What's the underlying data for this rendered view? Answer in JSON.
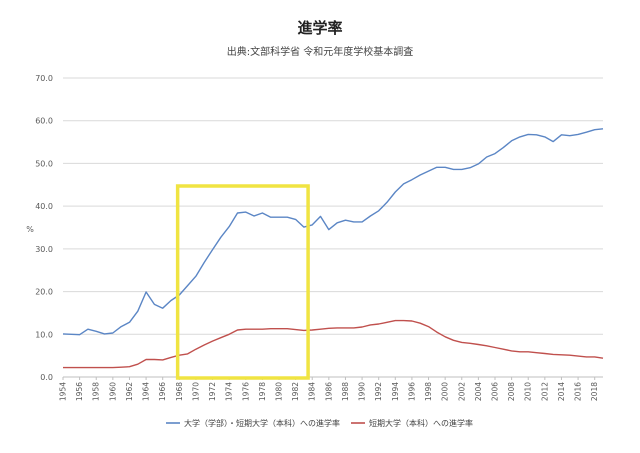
{
  "chart_data": {
    "type": "line",
    "title": "進学率",
    "subtitle": "出典:文部科学省 令和元年度学校基本調査",
    "ylabel": "%",
    "xlabel": "",
    "ylim": [
      0,
      70
    ],
    "yticks": [
      "0.0",
      "10.0",
      "20.0",
      "30.0",
      "40.0",
      "50.0",
      "60.0",
      "70.0"
    ],
    "x_tick_labels": [
      "1954",
      "1956",
      "1958",
      "1960",
      "1962",
      "1964",
      "1966",
      "1968",
      "1970",
      "1972",
      "1974",
      "1976",
      "1978",
      "1980",
      "1982",
      "1984",
      "1986",
      "1988",
      "1990",
      "1992",
      "1994",
      "1996",
      "1998",
      "2000",
      "2002",
      "2004",
      "2006",
      "2008",
      "2010",
      "2012",
      "2014",
      "2016",
      "2018"
    ],
    "grid": "horizontal",
    "legend_position": "bottom",
    "x": [
      1954,
      1955,
      1956,
      1957,
      1958,
      1959,
      1960,
      1961,
      1962,
      1963,
      1964,
      1965,
      1966,
      1967,
      1968,
      1969,
      1970,
      1971,
      1972,
      1973,
      1974,
      1975,
      1976,
      1977,
      1978,
      1979,
      1980,
      1981,
      1982,
      1983,
      1984,
      1985,
      1986,
      1987,
      1988,
      1989,
      1990,
      1991,
      1992,
      1993,
      1994,
      1995,
      1996,
      1997,
      1998,
      1999,
      2000,
      2001,
      2002,
      2003,
      2004,
      2005,
      2006,
      2007,
      2008,
      2009,
      2010,
      2011,
      2012,
      2013,
      2014,
      2015,
      2016,
      2017,
      2018,
      2019
    ],
    "series": [
      {
        "name": "大学（学部）・短期大学（本科）への進学率",
        "color": "#5b86c5",
        "values": [
          10.1,
          10.0,
          9.9,
          11.2,
          10.7,
          10.1,
          10.3,
          11.8,
          12.8,
          15.4,
          19.9,
          17.0,
          16.1,
          17.9,
          19.2,
          21.4,
          23.6,
          26.8,
          29.8,
          32.7,
          35.2,
          38.4,
          38.6,
          37.7,
          38.4,
          37.4,
          37.4,
          37.4,
          36.9,
          35.1,
          35.6,
          37.6,
          34.5,
          36.1,
          36.7,
          36.3,
          36.3,
          37.7,
          38.9,
          40.9,
          43.3,
          45.2,
          46.2,
          47.3,
          48.2,
          49.1,
          49.1,
          48.6,
          48.6,
          49.0,
          49.9,
          51.5,
          52.3,
          53.7,
          55.3,
          56.2,
          56.8,
          56.7,
          56.2,
          55.1,
          56.7,
          56.5,
          56.8,
          57.3,
          57.9,
          58.1
        ]
      },
      {
        "name": "短期大学（本科）への進学率",
        "color": "#c0504d",
        "values": [
          2.2,
          2.2,
          2.2,
          2.2,
          2.2,
          2.2,
          2.2,
          2.3,
          2.4,
          3.0,
          4.1,
          4.1,
          4.0,
          4.6,
          5.1,
          5.4,
          6.5,
          7.5,
          8.4,
          9.2,
          10.0,
          11.0,
          11.2,
          11.2,
          11.2,
          11.3,
          11.3,
          11.3,
          11.1,
          10.9,
          11.0,
          11.2,
          11.4,
          11.5,
          11.5,
          11.5,
          11.7,
          12.2,
          12.4,
          12.8,
          13.2,
          13.2,
          13.1,
          12.6,
          11.8,
          10.5,
          9.4,
          8.6,
          8.1,
          7.9,
          7.6,
          7.3,
          6.9,
          6.5,
          6.1,
          5.9,
          5.9,
          5.7,
          5.5,
          5.3,
          5.2,
          5.1,
          4.9,
          4.7,
          4.7,
          4.4
        ]
      }
    ],
    "annotation": {
      "type": "highlight-box",
      "x_range": [
        1967.8,
        1983.5
      ],
      "color": "#f0e442"
    }
  }
}
